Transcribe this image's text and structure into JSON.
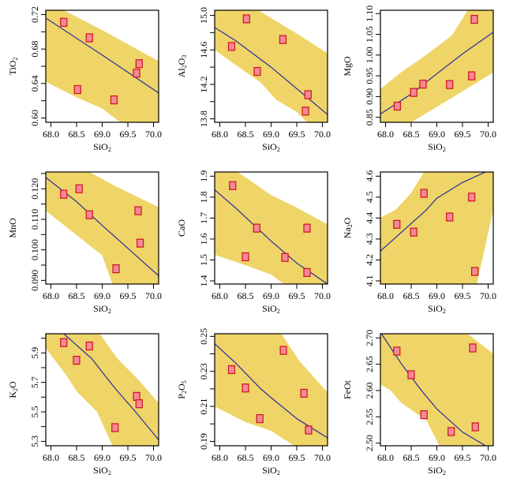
{
  "figure": {
    "description": "3x3 grid of Harker-style scatter plots of oxides vs SiO2 with regression line and confidence band"
  },
  "style": {
    "band_color": "#efd467",
    "line_color": "#2b2f9a",
    "marker_fill": "#f28a96",
    "marker_stroke": "#d0101e",
    "axis_color": "#000000"
  },
  "chart_data": [
    {
      "type": "scatter",
      "title": "",
      "xlabel": "SiO₂",
      "ylabel": "TiO₂",
      "xlim": [
        67.9,
        70.1
      ],
      "ylim": [
        0.595,
        0.725
      ],
      "xticks": [
        68.0,
        68.5,
        69.0,
        69.5,
        70.0
      ],
      "xtick_labels": [
        "68.0",
        "68.5",
        "69.0",
        "69.5",
        "70.0"
      ],
      "yticks": [
        0.6,
        0.62,
        0.64,
        0.66,
        0.68,
        0.7,
        0.72
      ],
      "ytick_labels": [
        "0.60",
        "",
        "0.64",
        "",
        "0.68",
        "",
        "0.72"
      ],
      "points": [
        [
          68.25,
          0.711
        ],
        [
          68.75,
          0.693
        ],
        [
          68.52,
          0.633
        ],
        [
          69.23,
          0.621
        ],
        [
          69.67,
          0.652
        ],
        [
          69.72,
          0.663
        ]
      ],
      "fit_line": [
        [
          67.9,
          0.716
        ],
        [
          69.0,
          0.673
        ],
        [
          70.1,
          0.629
        ]
      ],
      "band_upper": [
        [
          67.9,
          0.725
        ],
        [
          68.25,
          0.725
        ],
        [
          69.0,
          0.702
        ],
        [
          70.1,
          0.666
        ]
      ],
      "band_lower": [
        [
          67.9,
          0.642
        ],
        [
          68.5,
          0.624
        ],
        [
          69.0,
          0.611
        ],
        [
          69.35,
          0.595
        ],
        [
          70.1,
          0.595
        ]
      ],
      "grid": false,
      "legend": "none"
    },
    {
      "type": "scatter",
      "title": "",
      "xlabel": "SiO₂",
      "ylabel": "Al₂O₃",
      "xlim": [
        67.9,
        70.1
      ],
      "ylim": [
        13.76,
        15.06
      ],
      "xticks": [
        68.0,
        68.5,
        69.0,
        69.5,
        70.0
      ],
      "xtick_labels": [
        "68.0",
        "68.5",
        "69.0",
        "69.5",
        "70.0"
      ],
      "yticks": [
        13.8,
        14.0,
        14.2,
        14.4,
        14.6,
        14.8,
        15.0
      ],
      "ytick_labels": [
        "13.8",
        "",
        "14.2",
        "",
        "14.6",
        "",
        "15.0"
      ],
      "points": [
        [
          68.52,
          14.96
        ],
        [
          69.23,
          14.72
        ],
        [
          68.23,
          14.64
        ],
        [
          68.73,
          14.35
        ],
        [
          69.72,
          14.08
        ],
        [
          69.67,
          13.89
        ]
      ],
      "fit_line": [
        [
          67.9,
          14.86
        ],
        [
          68.3,
          14.71
        ],
        [
          69.0,
          14.4
        ],
        [
          69.6,
          14.1
        ],
        [
          70.1,
          13.85
        ]
      ],
      "band_upper": [
        [
          67.9,
          15.06
        ],
        [
          68.75,
          15.06
        ],
        [
          69.0,
          14.97
        ],
        [
          69.5,
          14.79
        ],
        [
          70.1,
          14.56
        ]
      ],
      "band_lower": [
        [
          67.9,
          14.6
        ],
        [
          68.3,
          14.43
        ],
        [
          68.8,
          14.22
        ],
        [
          69.1,
          14.02
        ],
        [
          69.5,
          13.88
        ],
        [
          69.7,
          13.76
        ],
        [
          70.1,
          13.76
        ]
      ],
      "grid": false,
      "legend": "none"
    },
    {
      "type": "scatter",
      "title": "",
      "xlabel": "SiO₂",
      "ylabel": "MgO",
      "xlim": [
        67.9,
        70.1
      ],
      "ylim": [
        0.838,
        1.108
      ],
      "xticks": [
        68.0,
        68.5,
        69.0,
        69.5,
        70.0
      ],
      "xtick_labels": [
        "68.0",
        "68.5",
        "69.0",
        "69.5",
        "70.0"
      ],
      "yticks": [
        0.85,
        0.9,
        0.95,
        1.0,
        1.05,
        1.1
      ],
      "ytick_labels": [
        "0.85",
        "0.90",
        "0.95",
        "1.00",
        "1.05",
        "1.10"
      ],
      "points": [
        [
          68.23,
          0.877
        ],
        [
          68.55,
          0.91
        ],
        [
          68.73,
          0.93
        ],
        [
          69.25,
          0.929
        ],
        [
          69.68,
          0.95
        ],
        [
          69.73,
          1.086
        ]
      ],
      "fit_line": [
        [
          67.9,
          0.858
        ],
        [
          68.5,
          0.906
        ],
        [
          69.0,
          0.955
        ],
        [
          69.5,
          1.003
        ],
        [
          70.1,
          1.055
        ]
      ],
      "band_upper": [
        [
          67.9,
          0.918
        ],
        [
          68.3,
          0.958
        ],
        [
          68.8,
          1.001
        ],
        [
          69.3,
          1.048
        ],
        [
          69.6,
          1.108
        ],
        [
          70.1,
          1.108
        ]
      ],
      "band_lower": [
        [
          67.9,
          0.838
        ],
        [
          68.5,
          0.838
        ],
        [
          69.2,
          0.89
        ],
        [
          70.1,
          0.958
        ]
      ],
      "grid": false,
      "legend": "none"
    },
    {
      "type": "scatter",
      "title": "",
      "xlabel": "SiO₂",
      "ylabel": "MnO",
      "xlim": [
        67.9,
        70.1
      ],
      "ylim": [
        0.0888,
        0.1255
      ],
      "xticks": [
        68.0,
        68.5,
        69.0,
        69.5,
        70.0
      ],
      "xtick_labels": [
        "68.0",
        "68.5",
        "69.0",
        "69.5",
        "70.0"
      ],
      "yticks": [
        0.09,
        0.095,
        0.1,
        0.105,
        0.11,
        0.115,
        0.12,
        0.125
      ],
      "ytick_labels": [
        "0.090",
        "",
        "0.100",
        "",
        "0.110",
        "",
        "0.120",
        ""
      ],
      "points": [
        [
          68.25,
          0.1182
        ],
        [
          68.55,
          0.12
        ],
        [
          68.75,
          0.1115
        ],
        [
          69.27,
          0.0938
        ],
        [
          69.7,
          0.1128
        ],
        [
          69.74,
          0.1022
        ]
      ],
      "fit_line": [
        [
          67.9,
          0.1237
        ],
        [
          68.5,
          0.1158
        ],
        [
          69.0,
          0.108
        ],
        [
          69.6,
          0.099
        ],
        [
          70.1,
          0.0915
        ]
      ],
      "band_upper": [
        [
          67.9,
          0.1255
        ],
        [
          68.75,
          0.1255
        ],
        [
          69.3,
          0.1205
        ],
        [
          70.1,
          0.114
        ]
      ],
      "band_lower": [
        [
          67.9,
          0.1128
        ],
        [
          68.3,
          0.1075
        ],
        [
          69.0,
          0.0982
        ],
        [
          69.2,
          0.0888
        ],
        [
          70.1,
          0.0888
        ]
      ],
      "grid": false,
      "legend": "none"
    },
    {
      "type": "scatter",
      "title": "",
      "xlabel": "SiO₂",
      "ylabel": "CaO",
      "xlim": [
        67.9,
        70.1
      ],
      "ylim": [
        1.385,
        1.92
      ],
      "xticks": [
        68.0,
        68.5,
        69.0,
        69.5,
        70.0
      ],
      "xtick_labels": [
        "68.0",
        "68.5",
        "69.0",
        "69.5",
        "70.0"
      ],
      "yticks": [
        1.4,
        1.5,
        1.6,
        1.7,
        1.8,
        1.9
      ],
      "ytick_labels": [
        "1.4",
        "1.5",
        "1.6",
        "1.7",
        "1.8",
        "1.9"
      ],
      "points": [
        [
          68.25,
          1.855
        ],
        [
          68.72,
          1.652
        ],
        [
          68.5,
          1.515
        ],
        [
          69.27,
          1.512
        ],
        [
          69.7,
          1.652
        ],
        [
          69.7,
          1.44
        ]
      ],
      "fit_line": [
        [
          67.9,
          1.835
        ],
        [
          68.3,
          1.75
        ],
        [
          69.0,
          1.59
        ],
        [
          69.5,
          1.485
        ],
        [
          70.1,
          1.385
        ]
      ],
      "band_upper": [
        [
          67.9,
          1.92
        ],
        [
          68.35,
          1.92
        ],
        [
          69.0,
          1.81
        ],
        [
          69.5,
          1.75
        ],
        [
          70.1,
          1.67
        ]
      ],
      "band_lower": [
        [
          67.9,
          1.525
        ],
        [
          68.5,
          1.475
        ],
        [
          69.0,
          1.43
        ],
        [
          69.25,
          1.385
        ],
        [
          70.1,
          1.385
        ]
      ],
      "grid": false,
      "legend": "none"
    },
    {
      "type": "scatter",
      "title": "",
      "xlabel": "SiO₂",
      "ylabel": "Na₂O",
      "xlim": [
        67.9,
        70.1
      ],
      "ylim": [
        4.085,
        4.62
      ],
      "xticks": [
        68.0,
        68.5,
        69.0,
        69.5,
        70.0
      ],
      "xtick_labels": [
        "68.0",
        "68.5",
        "69.0",
        "69.5",
        "70.0"
      ],
      "yticks": [
        4.1,
        4.2,
        4.3,
        4.4,
        4.5,
        4.6
      ],
      "ytick_labels": [
        "4.1",
        "4.2",
        "4.3",
        "4.4",
        "4.5",
        "4.6"
      ],
      "points": [
        [
          68.22,
          4.37
        ],
        [
          68.55,
          4.333
        ],
        [
          68.75,
          4.518
        ],
        [
          69.25,
          4.405
        ],
        [
          69.68,
          4.5
        ],
        [
          69.74,
          4.145
        ]
      ],
      "fit_line": [
        [
          67.9,
          4.242
        ],
        [
          68.3,
          4.33
        ],
        [
          68.8,
          4.44
        ],
        [
          69.0,
          4.495
        ],
        [
          69.5,
          4.57
        ],
        [
          69.95,
          4.62
        ]
      ],
      "band_upper": [
        [
          67.9,
          4.402
        ],
        [
          68.2,
          4.44
        ],
        [
          68.5,
          4.52
        ],
        [
          68.75,
          4.62
        ],
        [
          70.1,
          4.62
        ]
      ],
      "band_lower": [
        [
          67.9,
          4.085
        ],
        [
          69.78,
          4.085
        ],
        [
          70.1,
          4.44
        ]
      ],
      "grid": false,
      "legend": "none"
    },
    {
      "type": "scatter",
      "title": "",
      "xlabel": "SiO₂",
      "ylabel": "K₂O",
      "xlim": [
        67.9,
        70.1
      ],
      "ylim": [
        5.27,
        6.03
      ],
      "xticks": [
        68.0,
        68.5,
        69.0,
        69.5,
        70.0
      ],
      "xtick_labels": [
        "68.0",
        "68.5",
        "69.0",
        "69.5",
        "70.0"
      ],
      "yticks": [
        5.3,
        5.4,
        5.5,
        5.6,
        5.7,
        5.8,
        5.9,
        6.0
      ],
      "ytick_labels": [
        "5.3",
        "",
        "5.5",
        "",
        "5.7",
        "",
        "5.9",
        ""
      ],
      "points": [
        [
          68.25,
          5.97
        ],
        [
          68.75,
          5.947
        ],
        [
          68.5,
          5.85
        ],
        [
          69.67,
          5.605
        ],
        [
          69.72,
          5.555
        ],
        [
          69.25,
          5.393
        ]
      ],
      "fit_line": [
        [
          68.25,
          6.03
        ],
        [
          68.8,
          5.86
        ],
        [
          69.0,
          5.77
        ],
        [
          69.25,
          5.66
        ],
        [
          69.65,
          5.5
        ],
        [
          70.1,
          5.31
        ]
      ],
      "band_upper": [
        [
          67.9,
          6.03
        ],
        [
          68.95,
          6.03
        ],
        [
          69.3,
          5.86
        ],
        [
          69.7,
          5.72
        ],
        [
          70.1,
          5.56
        ]
      ],
      "band_lower": [
        [
          67.9,
          5.93
        ],
        [
          68.3,
          5.75
        ],
        [
          68.5,
          5.64
        ],
        [
          68.9,
          5.5
        ],
        [
          69.2,
          5.27
        ],
        [
          70.1,
          5.27
        ]
      ],
      "grid": false,
      "legend": "none"
    },
    {
      "type": "scatter",
      "title": "",
      "xlabel": "SiO₂",
      "ylabel": "P₂O₅",
      "xlim": [
        67.9,
        70.1
      ],
      "ylim": [
        0.1875,
        0.2515
      ],
      "xticks": [
        68.0,
        68.5,
        69.0,
        69.5,
        70.0
      ],
      "xtick_labels": [
        "68.0",
        "68.5",
        "69.0",
        "69.5",
        "70.0"
      ],
      "yticks": [
        0.19,
        0.2,
        0.21,
        0.22,
        0.23,
        0.24,
        0.25
      ],
      "ytick_labels": [
        "0.19",
        "",
        "0.21",
        "",
        "0.23",
        "",
        "0.25"
      ],
      "points": [
        [
          69.24,
          0.242
        ],
        [
          68.23,
          0.231
        ],
        [
          68.5,
          0.2205
        ],
        [
          69.64,
          0.2175
        ],
        [
          68.78,
          0.203
        ],
        [
          69.73,
          0.1965
        ]
      ],
      "fit_line": [
        [
          67.9,
          0.2458
        ],
        [
          68.3,
          0.235
        ],
        [
          68.8,
          0.22
        ],
        [
          69.0,
          0.215
        ],
        [
          69.5,
          0.203
        ],
        [
          70.1,
          0.192
        ]
      ],
      "band_upper": [
        [
          67.9,
          0.2515
        ],
        [
          69.2,
          0.2515
        ],
        [
          69.55,
          0.236
        ],
        [
          70.1,
          0.218
        ]
      ],
      "band_lower": [
        [
          67.9,
          0.21
        ],
        [
          68.5,
          0.201
        ],
        [
          69.0,
          0.196
        ],
        [
          69.45,
          0.1875
        ],
        [
          70.1,
          0.1875
        ]
      ],
      "grid": false,
      "legend": "none"
    },
    {
      "type": "scatter",
      "title": "",
      "xlabel": "SiO₂",
      "ylabel": "FeOt",
      "xlim": [
        67.9,
        70.1
      ],
      "ylim": [
        2.495,
        2.708
      ],
      "xticks": [
        68.0,
        68.5,
        69.0,
        69.5,
        70.0
      ],
      "xtick_labels": [
        "68.0",
        "68.5",
        "69.0",
        "69.5",
        "70.0"
      ],
      "yticks": [
        2.5,
        2.55,
        2.6,
        2.65,
        2.7
      ],
      "ytick_labels": [
        "2.50",
        "2.55",
        "2.60",
        "2.65",
        "2.70"
      ],
      "points": [
        [
          68.22,
          2.675
        ],
        [
          69.7,
          2.681
        ],
        [
          68.5,
          2.63
        ],
        [
          68.75,
          2.554
        ],
        [
          69.75,
          2.531
        ],
        [
          69.28,
          2.522
        ]
      ],
      "fit_line": [
        [
          67.92,
          2.708
        ],
        [
          68.3,
          2.652
        ],
        [
          68.7,
          2.6
        ],
        [
          69.0,
          2.565
        ],
        [
          69.5,
          2.521
        ],
        [
          69.95,
          2.495
        ]
      ],
      "band_upper": [
        [
          67.9,
          2.708
        ],
        [
          69.6,
          2.708
        ],
        [
          70.1,
          2.67
        ]
      ],
      "band_lower": [
        [
          67.9,
          2.612
        ],
        [
          68.1,
          2.6
        ],
        [
          68.3,
          2.577
        ],
        [
          68.8,
          2.543
        ],
        [
          69.05,
          2.495
        ],
        [
          70.1,
          2.495
        ]
      ],
      "grid": false,
      "legend": "none"
    }
  ]
}
